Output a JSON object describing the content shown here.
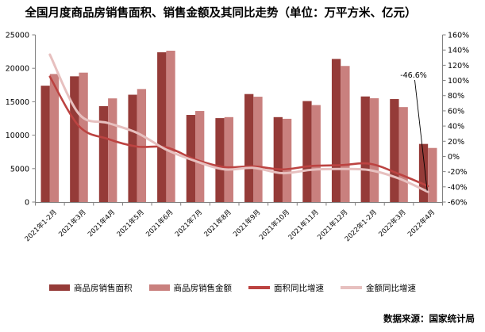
{
  "title": "全国月度商品房销售面积、销售金额及其同比走势（单位：万平方米、亿元）",
  "source": "数据来源：国家统计局",
  "annotation": {
    "text": "-46.6%"
  },
  "colors": {
    "bar_area": "#953B38",
    "bar_amount": "#C9807E",
    "line_area": "#BC4341",
    "line_amount": "#E7C0BF",
    "axis": "#808080",
    "text": "#000000"
  },
  "chart_data": {
    "type": "bar+line combo",
    "title": "全国月度商品房销售面积、销售金额及其同比走势（单位：万平方米、亿元）",
    "categories": [
      "2021年1-2月",
      "2021年3月",
      "2021年4月",
      "2021年5月",
      "2021年6月",
      "2021年7月",
      "2021年8月",
      "2021年9月",
      "2021年10月",
      "2021年11月",
      "2021年12月",
      "2022年1-2月",
      "2022年3月",
      "2022年4月"
    ],
    "series": [
      {
        "name": "商品房销售面积",
        "type": "bar",
        "axis": "left",
        "color": "#953B38",
        "values": [
          17400,
          18800,
          14340,
          16050,
          22400,
          13030,
          12550,
          16150,
          12700,
          15100,
          21400,
          15790,
          15400,
          8690
        ]
      },
      {
        "name": "商品房销售金额",
        "type": "bar",
        "axis": "left",
        "color": "#C9807E",
        "values": [
          19150,
          19350,
          15500,
          16900,
          22630,
          13620,
          12700,
          15750,
          12450,
          14500,
          20350,
          15520,
          14200,
          8090
        ]
      },
      {
        "name": "面积同比增速",
        "type": "line",
        "axis": "right",
        "color": "#BC4341",
        "values": [
          105,
          40,
          23,
          13,
          12,
          -4,
          -14,
          -13,
          -17,
          -12.5,
          -11.5,
          -9.6,
          -23,
          -39
        ]
      },
      {
        "name": "金额同比增速",
        "type": "line",
        "axis": "right",
        "color": "#E7C0BF",
        "values": [
          134,
          56,
          44,
          31,
          9,
          -6,
          -17,
          -15,
          -22,
          -17.5,
          -16.5,
          -18,
          -29,
          -46.6
        ]
      }
    ],
    "left_axis": {
      "min": 0,
      "max": 25000,
      "step": 5000
    },
    "right_axis": {
      "min": -60,
      "max": 160,
      "step": 20,
      "suffix": "%"
    },
    "grid": false,
    "legend_position": "bottom"
  }
}
